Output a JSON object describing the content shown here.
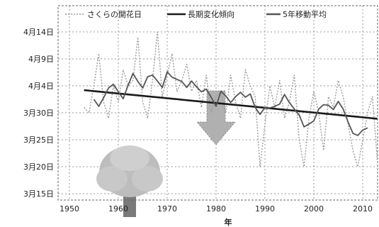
{
  "chart_data": {
    "type": "line",
    "title": "",
    "xlabel": "年",
    "ylabel": "",
    "xlim": [
      1950,
      2013
    ],
    "ylim": [
      74,
      105
    ],
    "x_ticks": [
      1950,
      1960,
      1970,
      1980,
      1990,
      2000,
      2010
    ],
    "x_tick_labels": [
      "1950",
      "1960",
      "1970",
      "1980",
      "1990",
      "2000",
      "2010"
    ],
    "y_ticks": [
      75,
      80,
      85,
      90,
      95,
      100,
      105
    ],
    "y_tick_labels": [
      "3月15日",
      "3月20日",
      "3月25日",
      "3月30日",
      "4月4日",
      "4月9日",
      "4月14日"
    ],
    "grid": true,
    "legend_position": "top",
    "series": [
      {
        "name": "さくらの開花日",
        "color": "#9a9a9a",
        "style": "dotted",
        "x": [
          1953,
          1954,
          1955,
          1956,
          1957,
          1958,
          1959,
          1960,
          1961,
          1962,
          1963,
          1964,
          1965,
          1966,
          1967,
          1968,
          1969,
          1970,
          1971,
          1972,
          1973,
          1974,
          1975,
          1976,
          1977,
          1978,
          1979,
          1980,
          1981,
          1982,
          1983,
          1984,
          1985,
          1986,
          1987,
          1988,
          1989,
          1990,
          1991,
          1992,
          1993,
          1994,
          1995,
          1996,
          1997,
          1998,
          1999,
          2000,
          2001,
          2002,
          2003,
          2004,
          2005,
          2006,
          2007,
          2008,
          2009,
          2010,
          2011,
          2012,
          2013
        ],
        "values": [
          91,
          90,
          95,
          101,
          92,
          89,
          95,
          92,
          98,
          95,
          96,
          104,
          92,
          89,
          96,
          105,
          93,
          97,
          101,
          94,
          96,
          99,
          94,
          96,
          91,
          97,
          90,
          93,
          94,
          90,
          97,
          92,
          89,
          98,
          95,
          93,
          80,
          88,
          95,
          91,
          96,
          89,
          92,
          97,
          85,
          80,
          89,
          94,
          90,
          83,
          93,
          91,
          96,
          93,
          88,
          83,
          80,
          85,
          90,
          93,
          81
        ]
      },
      {
        "name": "長期変化傾向",
        "color": "#1a1a1a",
        "style": "solid",
        "x": [
          1953,
          2013
        ],
        "values": [
          94.2,
          88.9
        ]
      },
      {
        "name": "5年移動平均",
        "color": "#555555",
        "style": "solid",
        "x": [
          1955,
          1956,
          1957,
          1958,
          1959,
          1960,
          1961,
          1962,
          1963,
          1964,
          1965,
          1966,
          1967,
          1968,
          1969,
          1970,
          1971,
          1972,
          1973,
          1974,
          1975,
          1976,
          1977,
          1978,
          1979,
          1980,
          1981,
          1982,
          1983,
          1984,
          1985,
          1986,
          1987,
          1988,
          1989,
          1990,
          1991,
          1992,
          1993,
          1994,
          1995,
          1996,
          1997,
          1998,
          1999,
          2000,
          2001,
          2002,
          2003,
          2004,
          2005,
          2006,
          2007,
          2008,
          2009,
          2010,
          2011
        ],
        "values": [
          92.5,
          91.2,
          92.8,
          94.6,
          95.3,
          93.9,
          92.6,
          95.1,
          97.3,
          95.8,
          94.6,
          96.7,
          97.0,
          95.9,
          94.7,
          97.6,
          96.6,
          96.2,
          95.8,
          94.7,
          95.9,
          94.8,
          93.9,
          94.4,
          92.9,
          91.2,
          94.0,
          93.1,
          91.9,
          93.0,
          93.8,
          92.9,
          93.5,
          91.0,
          89.7,
          91.0,
          90.9,
          91.2,
          91.6,
          93.4,
          91.9,
          90.7,
          89.6,
          87.4,
          87.9,
          88.5,
          90.7,
          91.5,
          91.4,
          90.6,
          92.1,
          90.7,
          88.3,
          86.2,
          85.8,
          86.8,
          87.2
        ]
      }
    ],
    "legend_entries": [
      "さくらの開花日",
      "長期変化傾向",
      "5年移動平均"
    ]
  }
}
